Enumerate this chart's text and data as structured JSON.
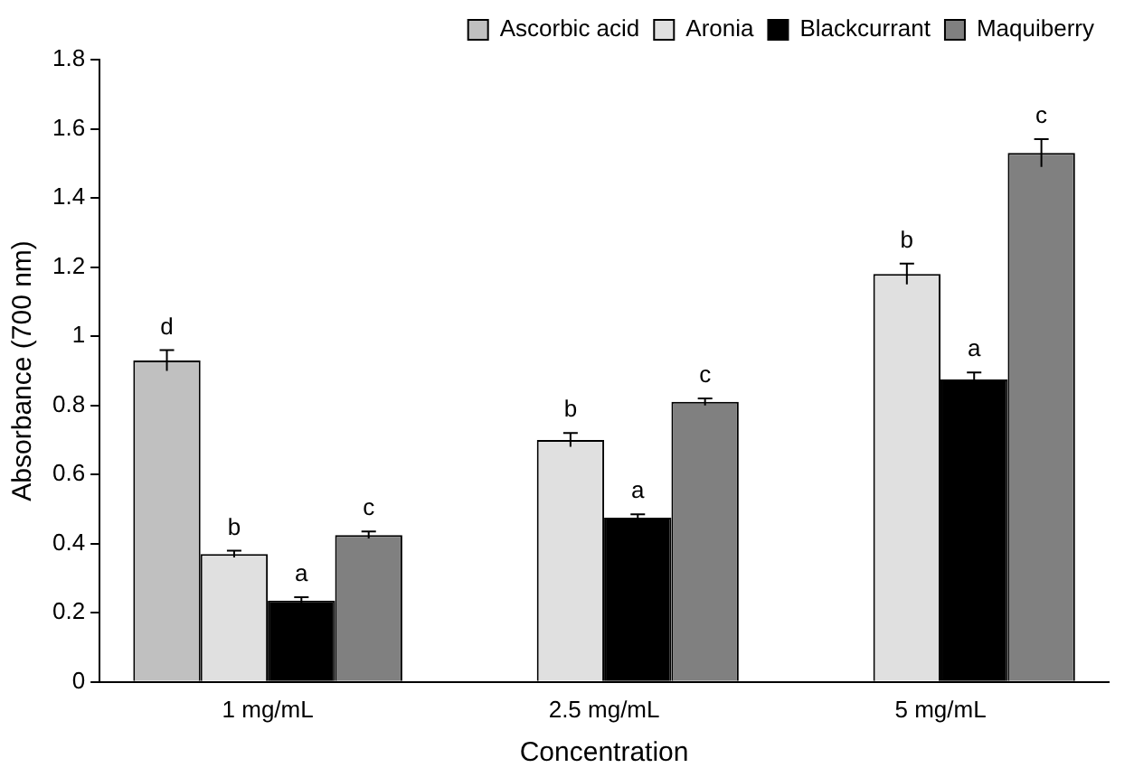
{
  "chart_data": {
    "type": "bar",
    "xlabel": "Concentration",
    "ylabel": "Absorbance (700 nm)",
    "categories": [
      "1 mg/mL",
      "2.5 mg/mL",
      "5 mg/mL"
    ],
    "series": [
      {
        "name": "Ascorbic acid",
        "color": "#c0c0c0",
        "values": [
          0.93,
          null,
          null
        ],
        "errors": [
          0.03,
          null,
          null
        ],
        "value_labels": [
          "d",
          null,
          null
        ]
      },
      {
        "name": "Aronia",
        "color": "#e0e0e0",
        "values": [
          0.37,
          0.7,
          1.18
        ],
        "errors": [
          0.01,
          0.02,
          0.03
        ],
        "value_labels": [
          "b",
          "b",
          "b"
        ]
      },
      {
        "name": "Blackcurrant",
        "color": "#000000",
        "values": [
          0.235,
          0.475,
          0.875
        ],
        "errors": [
          0.01,
          0.01,
          0.02
        ],
        "value_labels": [
          "a",
          "a",
          "a"
        ]
      },
      {
        "name": "Maquiberry",
        "color": "#808080",
        "values": [
          0.425,
          0.81,
          1.53
        ],
        "errors": [
          0.01,
          0.01,
          0.04
        ],
        "value_labels": [
          "c",
          "c",
          "c"
        ]
      }
    ],
    "ylim": [
      0,
      1.8
    ],
    "yticks": [
      0,
      0.2,
      0.4,
      0.6,
      0.8,
      1,
      1.2,
      1.4,
      1.6,
      1.8
    ],
    "grid": false,
    "legend": "top right"
  }
}
